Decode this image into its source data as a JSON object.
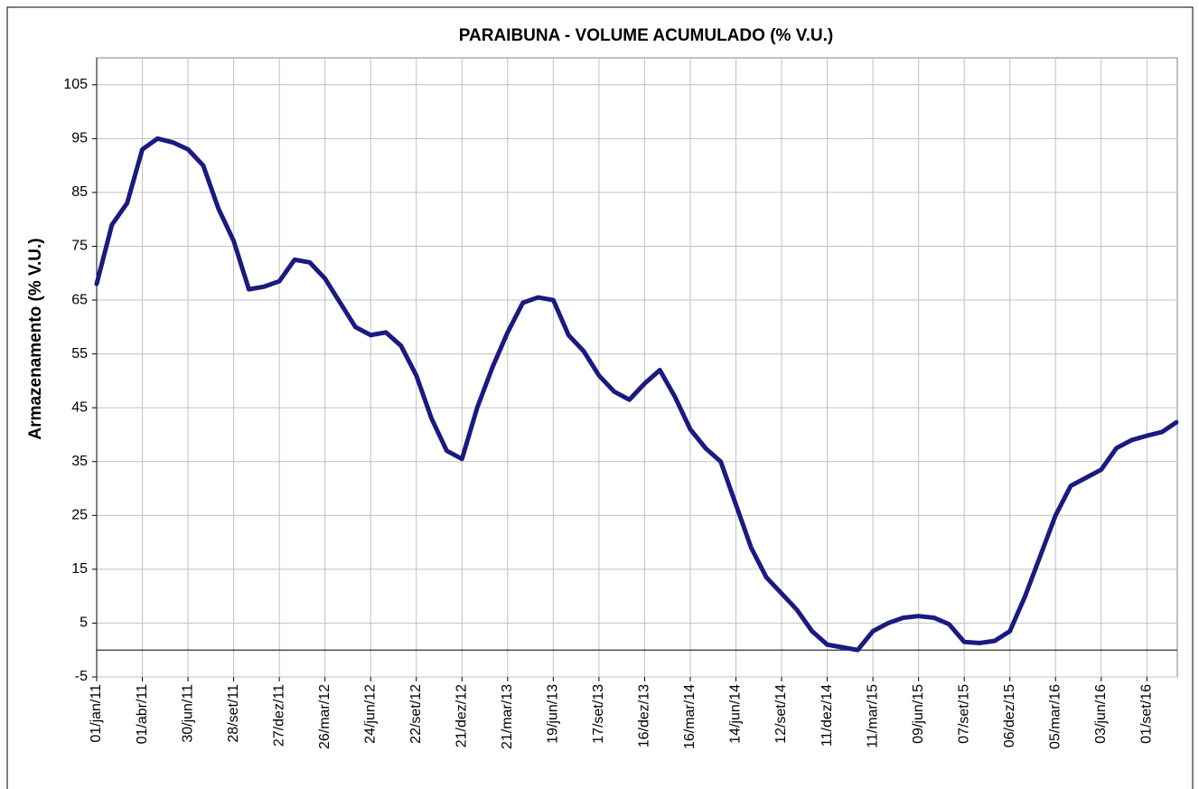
{
  "chart_data": {
    "type": "line",
    "title": "PARAIBUNA - VOLUME ACUMULADO (% V.U.)",
    "y_label": "Armazenamento (% V.U.)",
    "color": "#1a1a80",
    "grid": true,
    "x": [
      "2011-01-01",
      "2011-01-31",
      "2011-03-02",
      "2011-04-01",
      "2011-05-01",
      "2011-05-31",
      "2011-06-30",
      "2011-07-30",
      "2011-08-29",
      "2011-09-28",
      "2011-10-28",
      "2011-11-27",
      "2011-12-27",
      "2012-01-26",
      "2012-02-25",
      "2012-03-26",
      "2012-04-25",
      "2012-05-25",
      "2012-06-24",
      "2012-07-24",
      "2012-08-23",
      "2012-09-22",
      "2012-10-22",
      "2012-11-21",
      "2012-12-21",
      "2013-01-20",
      "2013-02-19",
      "2013-03-21",
      "2013-04-20",
      "2013-05-20",
      "2013-06-19",
      "2013-07-19",
      "2013-08-18",
      "2013-09-17",
      "2013-10-17",
      "2013-11-16",
      "2013-12-16",
      "2014-01-15",
      "2014-02-14",
      "2014-03-16",
      "2014-04-15",
      "2014-05-15",
      "2014-06-14",
      "2014-07-14",
      "2014-08-13",
      "2014-09-12",
      "2014-10-12",
      "2014-11-11",
      "2014-12-11",
      "2015-01-10",
      "2015-02-09",
      "2015-03-11",
      "2015-04-10",
      "2015-05-10",
      "2015-06-09",
      "2015-07-09",
      "2015-08-08",
      "2015-09-07",
      "2015-10-07",
      "2015-11-06",
      "2015-12-06",
      "2016-01-05",
      "2016-02-04",
      "2016-03-05",
      "2016-04-04",
      "2016-05-04",
      "2016-06-03",
      "2016-07-03",
      "2016-08-02",
      "2016-09-01",
      "2016-10-01",
      "2016-10-29"
    ],
    "values": [
      68,
      79,
      83,
      93,
      95,
      94.3,
      93,
      90,
      82,
      76,
      67,
      67.5,
      68.5,
      72.5,
      72,
      69,
      64.5,
      60,
      58.5,
      59,
      56.5,
      51,
      43,
      37,
      35.5,
      45,
      52.5,
      59,
      64.5,
      65.5,
      65,
      58.5,
      55.5,
      51,
      48,
      46.5,
      49.5,
      52,
      47,
      41,
      37.5,
      35,
      27,
      19,
      13.5,
      10.5,
      7.5,
      3.5,
      1,
      0.5,
      0,
      3.5,
      5,
      6,
      6.3,
      6,
      4.8,
      1.5,
      1.3,
      1.7,
      3.5,
      10,
      17.5,
      25,
      30.5,
      32,
      33.5,
      37.5,
      39,
      39.8,
      40.5,
      42.3
    ],
    "xlim": [
      "2011-01-01",
      "2016-10-31"
    ],
    "xticks": [
      {
        "value": "2011-01-01",
        "label": "01/jan/11"
      },
      {
        "value": "2011-04-01",
        "label": "01/abr/11"
      },
      {
        "value": "2011-06-30",
        "label": "30/jun/11"
      },
      {
        "value": "2011-09-28",
        "label": "28/set/11"
      },
      {
        "value": "2011-12-27",
        "label": "27/dez/11"
      },
      {
        "value": "2012-03-26",
        "label": "26/mar/12"
      },
      {
        "value": "2012-06-24",
        "label": "24/jun/12"
      },
      {
        "value": "2012-09-22",
        "label": "22/set/12"
      },
      {
        "value": "2012-12-21",
        "label": "21/dez/12"
      },
      {
        "value": "2013-03-21",
        "label": "21/mar/13"
      },
      {
        "value": "2013-06-19",
        "label": "19/jun/13"
      },
      {
        "value": "2013-09-17",
        "label": "17/set/13"
      },
      {
        "value": "2013-12-16",
        "label": "16/dez/13"
      },
      {
        "value": "2014-03-16",
        "label": "16/mar/14"
      },
      {
        "value": "2014-06-14",
        "label": "14/jun/14"
      },
      {
        "value": "2014-09-12",
        "label": "12/set/14"
      },
      {
        "value": "2014-12-11",
        "label": "11/dez/14"
      },
      {
        "value": "2015-03-11",
        "label": "11/mar/15"
      },
      {
        "value": "2015-06-09",
        "label": "09/jun/15"
      },
      {
        "value": "2015-09-07",
        "label": "07/set/15"
      },
      {
        "value": "2015-12-06",
        "label": "06/dez/15"
      },
      {
        "value": "2016-03-05",
        "label": "05/mar/16"
      },
      {
        "value": "2016-06-03",
        "label": "03/jun/16"
      },
      {
        "value": "2016-09-01",
        "label": "01/set/16"
      }
    ],
    "ylim": [
      -5,
      110
    ],
    "yticks": [
      -5,
      5,
      15,
      25,
      35,
      45,
      55,
      65,
      75,
      85,
      95,
      105
    ]
  }
}
